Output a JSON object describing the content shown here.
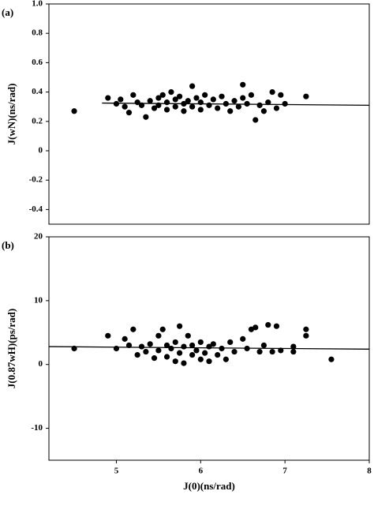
{
  "chart_data": [
    {
      "type": "scatter",
      "panel_label": "(a)",
      "ylabel": "J(wN)(ns/rad)",
      "xlim": [
        4.2,
        8
      ],
      "ylim": [
        -0.5,
        1.0
      ],
      "yticks": [
        {
          "value": 1,
          "label": "1.0"
        },
        0.8,
        0.6,
        0.4,
        0.2,
        0,
        -0.2,
        -0.4
      ],
      "series": [
        {
          "color": "#000000",
          "x": [
            4.5,
            4.9,
            5.0,
            5.05,
            5.1,
            5.15,
            5.2,
            5.25,
            5.3,
            5.35,
            5.4,
            5.45,
            5.5,
            5.5,
            5.55,
            5.6,
            5.6,
            5.65,
            5.7,
            5.7,
            5.75,
            5.8,
            5.8,
            5.85,
            5.9,
            5.9,
            5.95,
            6.0,
            6.0,
            6.05,
            6.1,
            6.15,
            6.2,
            6.25,
            6.3,
            6.35,
            6.4,
            6.45,
            6.5,
            6.5,
            6.55,
            6.6,
            6.65,
            6.7,
            6.75,
            6.8,
            6.85,
            6.9,
            6.95,
            7.0,
            7.25
          ],
          "values": [
            0.27,
            0.36,
            0.32,
            0.35,
            0.3,
            0.26,
            0.38,
            0.33,
            0.31,
            0.23,
            0.34,
            0.29,
            0.36,
            0.31,
            0.38,
            0.33,
            0.28,
            0.4,
            0.35,
            0.3,
            0.37,
            0.32,
            0.27,
            0.34,
            0.44,
            0.3,
            0.36,
            0.33,
            0.28,
            0.38,
            0.31,
            0.35,
            0.29,
            0.37,
            0.32,
            0.27,
            0.34,
            0.3,
            0.45,
            0.36,
            0.32,
            0.38,
            0.21,
            0.31,
            0.27,
            0.33,
            0.4,
            0.29,
            0.38,
            0.32,
            0.37
          ]
        }
      ],
      "fit": {
        "color": "#000000",
        "x": [
          4.83,
          8
        ],
        "values": [
          0.325,
          0.31
        ]
      }
    },
    {
      "type": "scatter",
      "panel_label": "(b)",
      "ylabel": "J(0.87wH)(ps/rad)",
      "xlabel": "J(0)(ns/rad)",
      "xlim": [
        4.2,
        8
      ],
      "ylim": [
        -15,
        20
      ],
      "xticks": [
        5,
        6,
        7,
        8
      ],
      "yticks": [
        20,
        10,
        0,
        -10
      ],
      "series": [
        {
          "color": "#000000",
          "x": [
            4.5,
            4.9,
            5.0,
            5.1,
            5.15,
            5.2,
            5.25,
            5.3,
            5.35,
            5.4,
            5.45,
            5.5,
            5.5,
            5.55,
            5.6,
            5.6,
            5.65,
            5.7,
            5.7,
            5.75,
            5.75,
            5.8,
            5.8,
            5.85,
            5.9,
            5.9,
            5.95,
            6.0,
            6.0,
            6.05,
            6.1,
            6.1,
            6.15,
            6.2,
            6.25,
            6.3,
            6.35,
            6.4,
            6.5,
            6.55,
            6.6,
            6.65,
            6.7,
            6.75,
            6.8,
            6.85,
            6.9,
            6.95,
            7.1,
            7.1,
            7.25,
            7.25,
            7.55
          ],
          "values": [
            2.5,
            4.5,
            2.5,
            4.0,
            3.0,
            5.5,
            1.5,
            2.8,
            2.0,
            3.2,
            1.0,
            4.5,
            2.2,
            5.5,
            3.0,
            1.2,
            2.5,
            0.5,
            3.5,
            6.0,
            1.8,
            2.8,
            0.2,
            4.5,
            1.5,
            3.0,
            2.2,
            0.8,
            3.5,
            1.8,
            2.8,
            0.5,
            3.2,
            1.5,
            2.5,
            0.8,
            3.5,
            2.0,
            4.0,
            2.5,
            5.5,
            5.8,
            2.0,
            3.0,
            6.2,
            2.0,
            6.0,
            2.2,
            2.8,
            2.0,
            5.5,
            4.5,
            0.8
          ]
        }
      ],
      "fit": {
        "color": "#000000",
        "x": [
          4.2,
          8
        ],
        "values": [
          2.8,
          2.4
        ]
      }
    }
  ]
}
